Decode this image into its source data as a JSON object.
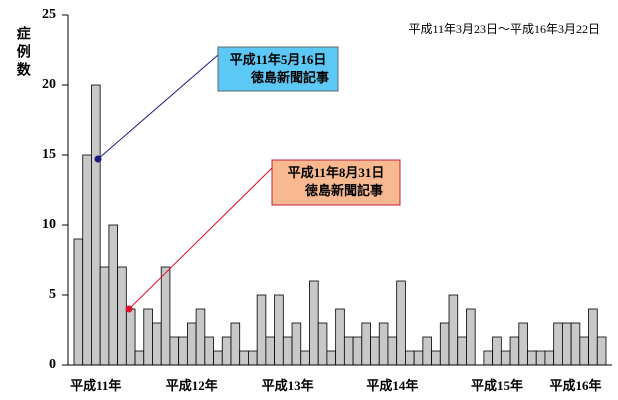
{
  "chart_data": {
    "type": "bar",
    "y_label": "症例数",
    "period": "平成11年3月23日〜平成16年3月22日",
    "annotations": [
      {
        "lines": [
          "平成11年5月16日",
          "徳島新聞記事"
        ]
      },
      {
        "lines": [
          "平成11年8月31日",
          "徳島新聞記事"
        ]
      }
    ],
    "categories": [
      "平成11年",
      null,
      null,
      null,
      null,
      null,
      null,
      null,
      null,
      null,
      null,
      "平成12年",
      null,
      null,
      null,
      null,
      null,
      null,
      null,
      null,
      null,
      null,
      "平成13年",
      null,
      null,
      null,
      null,
      null,
      null,
      null,
      null,
      null,
      null,
      null,
      "平成14年",
      null,
      null,
      null,
      null,
      null,
      null,
      null,
      null,
      null,
      null,
      null,
      "平成15年",
      null,
      null,
      null,
      null,
      null,
      null,
      null,
      null,
      "平成16年",
      null,
      null,
      null,
      null,
      null
    ],
    "values": [
      9,
      15,
      20,
      7,
      10,
      7,
      4,
      1,
      4,
      3,
      7,
      2,
      2,
      3,
      4,
      2,
      1,
      2,
      3,
      1,
      1,
      5,
      2,
      5,
      2,
      3,
      1,
      6,
      3,
      1,
      4,
      2,
      2,
      3,
      2,
      3,
      2,
      6,
      1,
      1,
      2,
      1,
      3,
      5,
      2,
      4,
      0,
      1,
      2,
      1,
      2,
      3,
      1,
      1,
      1,
      3,
      3,
      3,
      2,
      4,
      2
    ],
    "color": "#c8c8c8",
    "ylim": [
      0,
      25
    ],
    "yticks": [
      0,
      5,
      10,
      15,
      20,
      25
    ],
    "grid": false
  }
}
